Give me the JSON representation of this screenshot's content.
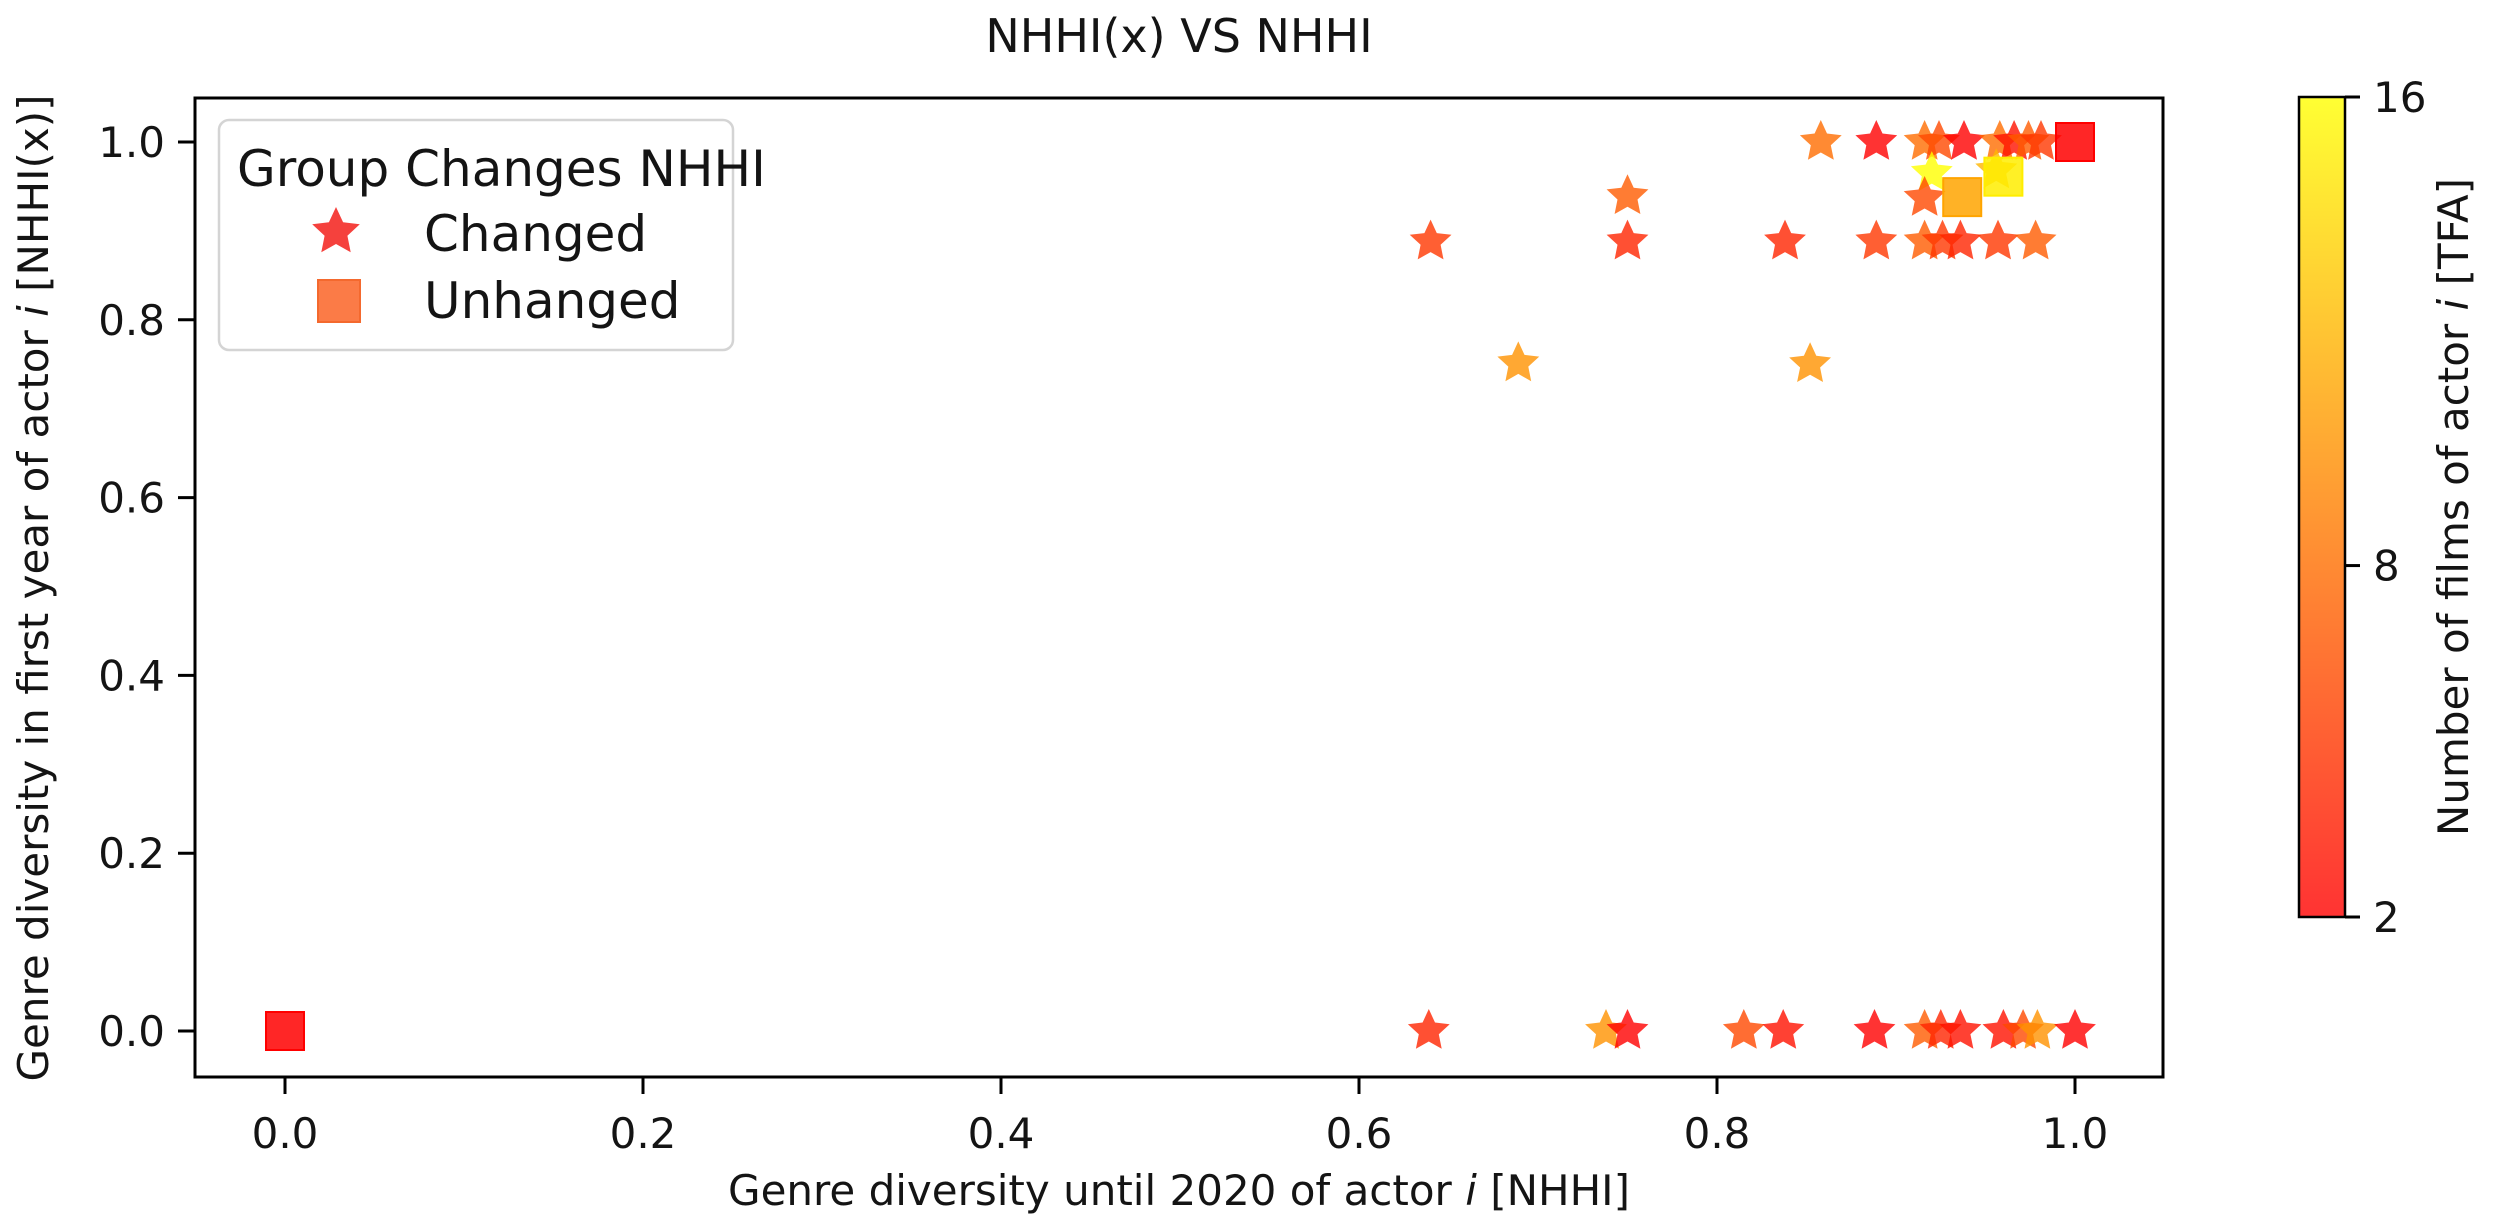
{
  "chart_data": {
    "type": "scatter",
    "title": "NHHI(x) VS NHHI",
    "xlabel_parts": {
      "pre": "Genre diversity until 2020 of actor ",
      "i": "i",
      "post": " [NHHI]"
    },
    "ylabel_parts": {
      "pre": "Genre diversity in first year of actor ",
      "i": "i",
      "post": " [NHHI(x)]"
    },
    "xlim": [
      -0.05,
      1.05
    ],
    "ylim": [
      -0.05,
      1.05
    ],
    "grid": false,
    "xticks": [
      {
        "value": 0.0,
        "label": "0.0"
      },
      {
        "value": 0.2,
        "label": "0.2"
      },
      {
        "value": 0.4,
        "label": "0.4"
      },
      {
        "value": 0.6,
        "label": "0.6"
      },
      {
        "value": 0.8,
        "label": "0.8"
      },
      {
        "value": 1.0,
        "label": "1.0"
      }
    ],
    "yticks": [
      {
        "value": 0.0,
        "label": "0.0"
      },
      {
        "value": 0.2,
        "label": "0.2"
      },
      {
        "value": 0.4,
        "label": "0.4"
      },
      {
        "value": 0.6,
        "label": "0.6"
      },
      {
        "value": 0.8,
        "label": "0.8"
      },
      {
        "value": 1.0,
        "label": "1.0"
      }
    ],
    "legend": {
      "position": "upper left",
      "title": "Group Changes NHHI",
      "entries": [
        {
          "label": "Changed",
          "marker": "star",
          "color": "#f5413d"
        },
        {
          "label": "Unhanged",
          "marker": "square",
          "color": "#fb7b47"
        }
      ]
    },
    "colorbar": {
      "label_parts": {
        "pre": "Number of films of actor ",
        "i": "i",
        "post": " [TFA]"
      },
      "min": 2,
      "max": 16,
      "ticks": [
        {
          "value": 16,
          "label": "16"
        },
        {
          "value": 8,
          "label": "8"
        },
        {
          "value": 2,
          "label": "2"
        }
      ],
      "colormap": "autumn",
      "top_color": "#ffff33",
      "mid_color": "#ff8b33",
      "bottom_color": "#ff3333"
    },
    "series": [
      {
        "name": "Changed",
        "marker": "star",
        "points": [
          [
            0.858,
            1.0,
            8
          ],
          [
            0.889,
            1.0,
            2
          ],
          [
            0.916,
            1.0,
            8
          ],
          [
            0.924,
            1.0,
            6
          ],
          [
            0.938,
            1.0,
            2
          ],
          [
            0.958,
            1.0,
            8
          ],
          [
            0.966,
            1.0,
            3
          ],
          [
            0.974,
            1.0,
            7
          ],
          [
            0.981,
            1.0,
            5
          ],
          [
            0.92,
            0.965,
            16
          ],
          [
            0.956,
            0.968,
            12
          ],
          [
            0.75,
            0.939,
            7
          ],
          [
            0.916,
            0.937,
            6
          ],
          [
            0.64,
            0.888,
            5
          ],
          [
            0.75,
            0.888,
            4
          ],
          [
            0.838,
            0.888,
            4
          ],
          [
            0.889,
            0.888,
            5
          ],
          [
            0.916,
            0.888,
            7
          ],
          [
            0.926,
            0.888,
            5
          ],
          [
            0.936,
            0.888,
            4
          ],
          [
            0.957,
            0.888,
            5
          ],
          [
            0.978,
            0.888,
            7
          ],
          [
            0.689,
            0.751,
            10
          ],
          [
            0.852,
            0.75,
            10
          ],
          [
            0.639,
            0.0,
            4
          ],
          [
            0.738,
            0.0,
            10
          ],
          [
            0.75,
            0.0,
            2
          ],
          [
            0.815,
            0.0,
            6
          ],
          [
            0.837,
            0.0,
            3
          ],
          [
            0.888,
            0.0,
            2
          ],
          [
            0.916,
            0.0,
            7
          ],
          [
            0.925,
            0.0,
            4
          ],
          [
            0.936,
            0.0,
            3
          ],
          [
            0.96,
            0.0,
            3
          ],
          [
            0.971,
            0.0,
            6
          ],
          [
            0.979,
            0.0,
            10
          ],
          [
            1.0,
            0.0,
            2
          ]
        ]
      },
      {
        "name": "Unhanged",
        "marker": "square",
        "points": [
          [
            0.0,
            0.0,
            2
          ],
          [
            1.0,
            1.0,
            2
          ],
          [
            0.937,
            0.938,
            11
          ],
          [
            0.96,
            0.961,
            15
          ]
        ]
      }
    ]
  }
}
